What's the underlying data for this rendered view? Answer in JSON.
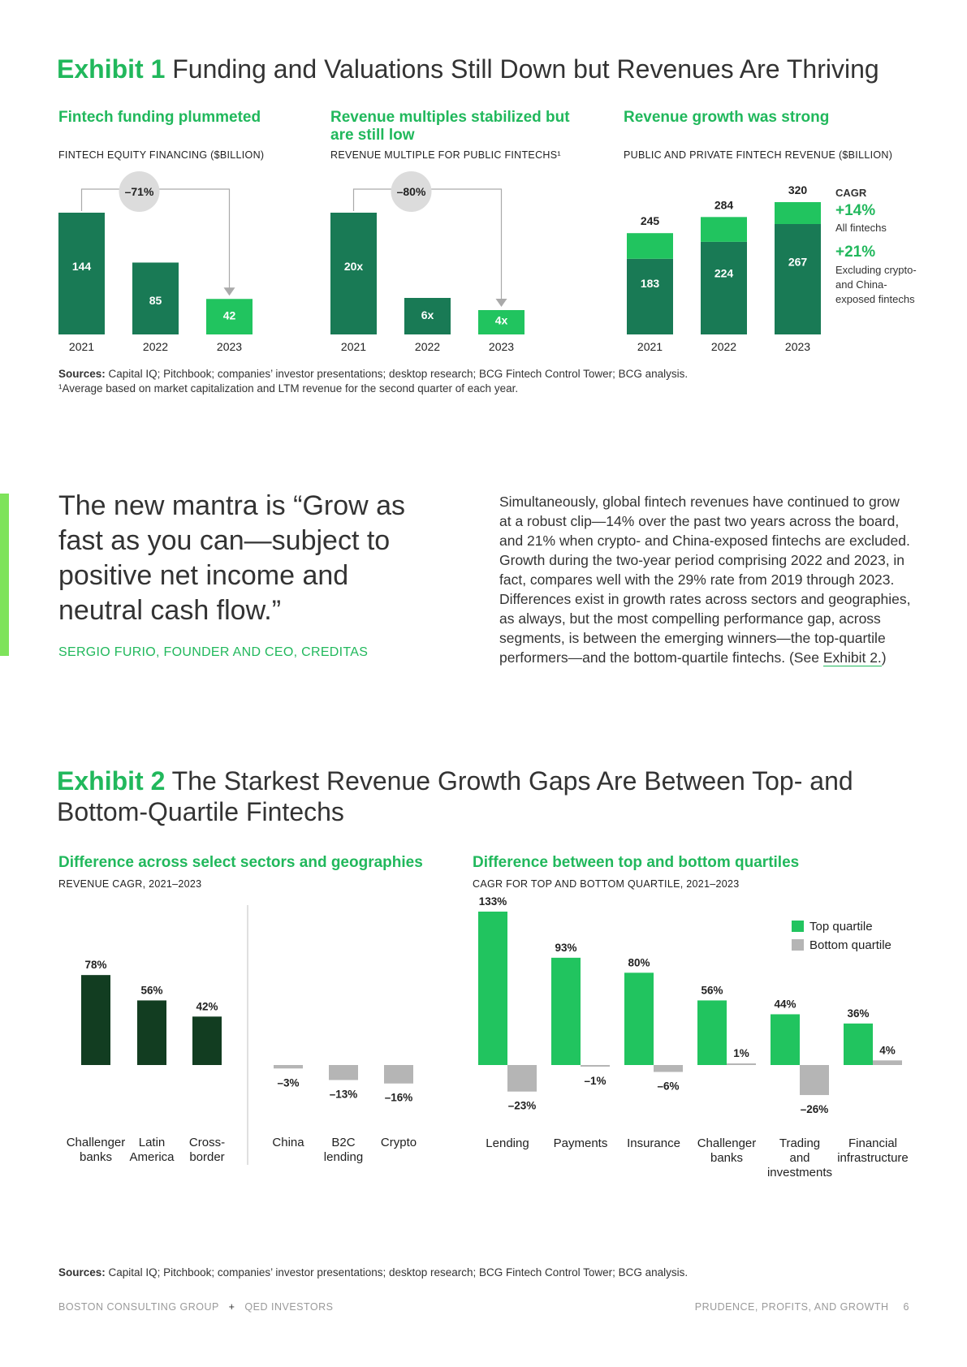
{
  "exhibit1": {
    "label": "Exhibit 1",
    "title": "Funding and Valuations Still Down but Revenues Are Thriving",
    "panels": [
      {
        "title": "Fintech funding plummeted",
        "subtitle": "FINTECH EQUITY FINANCING ($BILLION)"
      },
      {
        "title": "Revenue multiples stabilized but are still low",
        "subtitle": "REVENUE MULTIPLE FOR PUBLIC FINTECHS¹"
      },
      {
        "title": "Revenue growth was strong",
        "subtitle": "PUBLIC AND PRIVATE FINTECH REVENUE ($BILLION)"
      }
    ],
    "cagr": {
      "heading": "CAGR",
      "all_value": "+14%",
      "all_label": "All fintechs",
      "excl_value": "+21%",
      "excl_label": "Excluding crypto- and China-exposed fintechs"
    },
    "sources_label": "Sources:",
    "sources": "Capital IQ; Pitchbook; companies’ investor presentations; desktop research; BCG Fintech Control Tower; BCG analysis.",
    "footnote": "¹Average based on market capitalization and LTM revenue for the second quarter of each year."
  },
  "quote": {
    "text": "The new mantra is “Grow as fast as you can—subject to positive net income and neutral cash flow.”",
    "attribution": "SERGIO FURIO, FOUNDER AND CEO, CREDITAS"
  },
  "body": {
    "text": "Simultaneously, global fintech revenues have continued to grow at a robust clip—14% over the past two years across the board, and 21% when crypto- and China-exposed fintechs are excluded. Growth during the two-year period comprising 2022 and 2023, in fact, compares well with the 29% rate from 2019 through 2023. Differences exist in growth rates across sectors and geographies, as always, but the most compelling performance gap, across segments, is between the emerging winners—the top-quartile performers—and the bottom-quartile fintechs. (See ",
    "link": "Exhibit 2.",
    "end": ")"
  },
  "exhibit2": {
    "label": "Exhibit 2",
    "title": "The Starkest Revenue Growth Gaps Are Between Top- and Bottom-Quartile Fintechs",
    "panels": [
      {
        "title": "Difference across select sectors and geographies",
        "subtitle": "REVENUE CAGR, 2021–2023"
      },
      {
        "title": "Difference between top and bottom quartiles",
        "subtitle": "CAGR FOR TOP AND BOTTOM QUARTILE, 2021–2023"
      }
    ],
    "sources_label": "Sources:",
    "sources": "Capital IQ; Pitchbook; companies’ investor presentations; desktop research; BCG Fintech Control Tower; BCG analysis."
  },
  "footer": {
    "left1": "BOSTON CONSULTING GROUP",
    "plus": "+",
    "left2": "QED INVESTORS",
    "right": "PRUDENCE, PROFITS, AND GROWTH",
    "page": "6"
  },
  "colors": {
    "dark_green": "#197a55",
    "bright_green": "#21c45f",
    "forest": "#123d21",
    "gray": "#b5b5b5",
    "accent_bar": "#7ee35a"
  },
  "chart_data": [
    {
      "type": "bar",
      "title": "Fintech funding plummeted",
      "ylabel": "FINTECH EQUITY FINANCING ($BILLION)",
      "categories": [
        "2021",
        "2022",
        "2023"
      ],
      "values": [
        144,
        85,
        42
      ],
      "labels": [
        "144",
        "85",
        "42"
      ],
      "change_annotation": "–71%"
    },
    {
      "type": "bar",
      "title": "Revenue multiples stabilized but are still low",
      "ylabel": "REVENUE MULTIPLE FOR PUBLIC FINTECHS¹",
      "categories": [
        "2021",
        "2022",
        "2023"
      ],
      "values": [
        20,
        6,
        4
      ],
      "labels": [
        "20x",
        "6x",
        "4x"
      ],
      "change_annotation": "–80%"
    },
    {
      "type": "bar",
      "title": "Revenue growth was strong",
      "ylabel": "PUBLIC AND PRIVATE FINTECH REVENUE ($BILLION)",
      "categories": [
        "2021",
        "2022",
        "2023"
      ],
      "totals": [
        245,
        284,
        320
      ],
      "series": [
        {
          "values": [
            183,
            224,
            267
          ]
        },
        {
          "values": [
            62,
            60,
            53
          ]
        }
      ]
    },
    {
      "type": "bar",
      "title": "Difference across select sectors and geographies",
      "ylabel": "REVENUE CAGR, 2021–2023",
      "categories": [
        "Challenger banks",
        "Latin America",
        "Cross-border",
        "China",
        "B2C lending",
        "Crypto"
      ],
      "values": [
        78,
        56,
        42,
        -3,
        -13,
        -16
      ],
      "labels": [
        "78%",
        "56%",
        "42%",
        "–3%",
        "–13%",
        "–16%"
      ]
    },
    {
      "type": "bar",
      "title": "Difference between top and bottom quartiles",
      "ylabel": "CAGR FOR TOP AND BOTTOM QUARTILE, 2021–2023",
      "categories": [
        "Lending",
        "Payments",
        "Insurance",
        "Challenger banks",
        "Trading and investments",
        "Financial infrastructure"
      ],
      "series": [
        {
          "name": "Top quartile",
          "values": [
            133,
            93,
            80,
            56,
            44,
            36
          ],
          "labels": [
            "133%",
            "93%",
            "80%",
            "56%",
            "44%",
            "36%"
          ]
        },
        {
          "name": "Bottom quartile",
          "values": [
            -23,
            -1,
            -6,
            1,
            -26,
            4
          ],
          "labels": [
            "–23%",
            "–1%",
            "–6%",
            "1%",
            "–26%",
            "4%"
          ]
        }
      ],
      "legend": "top-right"
    }
  ]
}
